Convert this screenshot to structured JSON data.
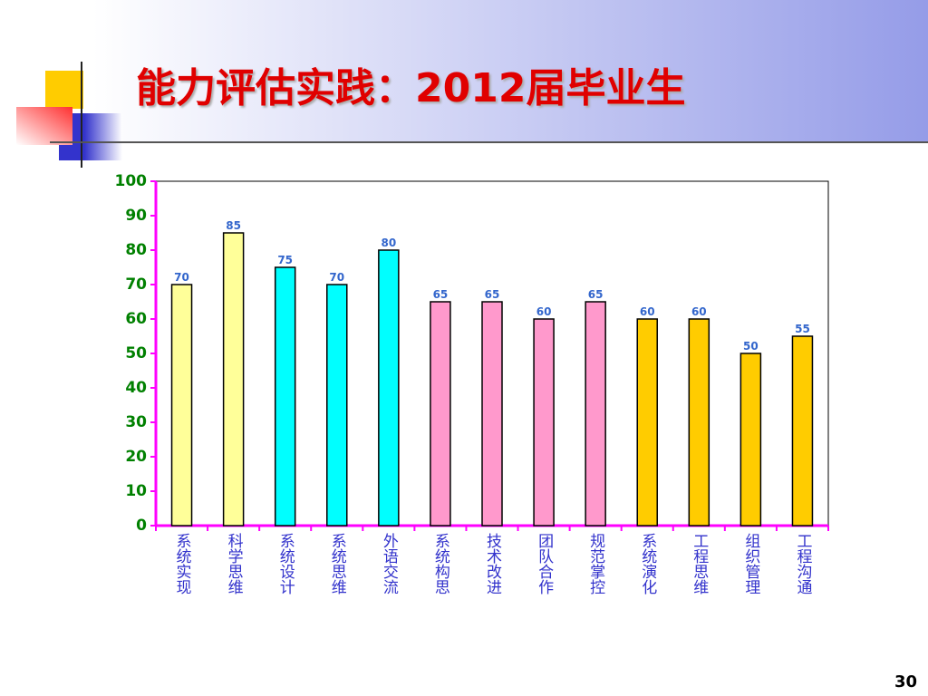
{
  "chart_data": {
    "type": "bar",
    "title": "能力评估实践：2012届毕业生",
    "categories": [
      "系统实现",
      "科学思维",
      "系统设计",
      "系统思维",
      "外语交流",
      "系统构思",
      "技术改进",
      "团队合作",
      "规范掌控",
      "系统演化",
      "工程思维",
      "组织管理",
      "工程沟通"
    ],
    "values": [
      70,
      85,
      75,
      70,
      80,
      65,
      65,
      60,
      65,
      60,
      60,
      50,
      55
    ],
    "colors": [
      "#ffff99",
      "#ffff99",
      "#00ffff",
      "#00ffff",
      "#00ffff",
      "#ff99cc",
      "#ff99cc",
      "#ff99cc",
      "#ff99cc",
      "#ffcc00",
      "#ffcc00",
      "#ffcc00",
      "#ffcc00"
    ],
    "ylim": [
      0,
      100
    ],
    "yticks": [
      0,
      10,
      20,
      30,
      40,
      50,
      60,
      70,
      80,
      90,
      100
    ],
    "grid": false
  },
  "page_number": "30"
}
